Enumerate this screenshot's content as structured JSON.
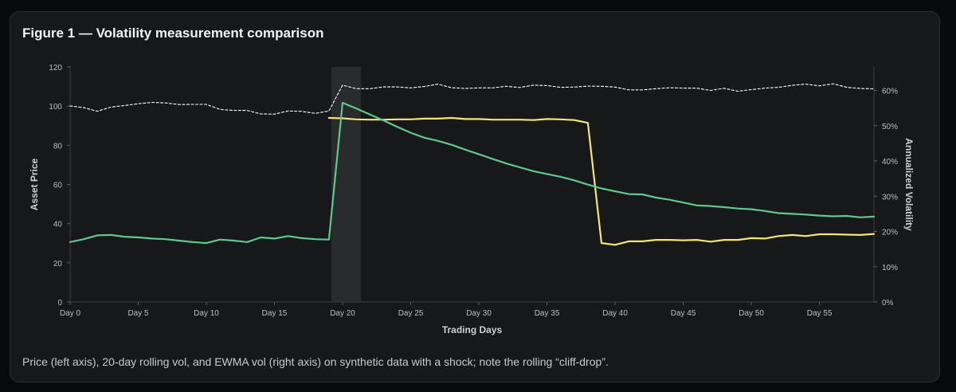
{
  "figure": {
    "title": "Figure 1 — Volatility measurement comparison",
    "caption": "Price (left axis), 20-day rolling vol, and EWMA vol (right axis) on synthetic data with a shock; note the rolling “cliff-drop”."
  },
  "colors": {
    "background": "#17181a",
    "price": "#ffffff",
    "rolling_vol": "#f5e47a",
    "ewma_vol": "#5ec98c",
    "shock_band": "#2a2b2d",
    "axis_text": "#bdbdbd"
  },
  "chart_data": {
    "type": "line",
    "xlabel": "Trading Days",
    "ylabel_left": "Asset Price",
    "ylabel_right": "Annualized Volatility",
    "xlim": [
      0,
      59
    ],
    "ylim_left": [
      0,
      120
    ],
    "ylim_right": [
      0,
      0.6667
    ],
    "x_ticks": [
      0,
      5,
      10,
      15,
      20,
      25,
      30,
      35,
      40,
      45,
      50,
      55
    ],
    "x_tick_labels": [
      "Day 0",
      "Day 5",
      "Day 10",
      "Day 15",
      "Day 20",
      "Day 25",
      "Day 30",
      "Day 35",
      "Day 40",
      "Day 45",
      "Day 50",
      "Day 55"
    ],
    "y_left_ticks": [
      0,
      20,
      40,
      60,
      80,
      100,
      120
    ],
    "y_left_tick_labels": [
      "0",
      "20",
      "40",
      "60",
      "80",
      "100",
      "120"
    ],
    "y_right_ticks": [
      0,
      0.1,
      0.2,
      0.3,
      0.4,
      0.5,
      0.6
    ],
    "y_right_tick_labels": [
      "0%",
      "10%",
      "20%",
      "30%",
      "40%",
      "50%",
      "60%"
    ],
    "shock_region": [
      19,
      21
    ],
    "grid": false,
    "legend": "none",
    "x": [
      0,
      1,
      2,
      3,
      4,
      5,
      6,
      7,
      8,
      9,
      10,
      11,
      12,
      13,
      14,
      15,
      16,
      17,
      18,
      19,
      20,
      21,
      22,
      23,
      24,
      25,
      26,
      27,
      28,
      29,
      30,
      31,
      32,
      33,
      34,
      35,
      36,
      37,
      38,
      39,
      40,
      41,
      42,
      43,
      44,
      45,
      46,
      47,
      48,
      49,
      50,
      51,
      52,
      53,
      54,
      55,
      56,
      57,
      58,
      59
    ],
    "series": [
      {
        "axis": "left",
        "style": "dashed",
        "values": [
          100.1,
          99.2,
          97.4,
          99.5,
          100.3,
          101.2,
          101.9,
          101.6,
          100.8,
          100.9,
          100.9,
          98.3,
          97.8,
          97.8,
          96.0,
          95.9,
          97.5,
          97.3,
          96.3,
          97.5,
          110.7,
          108.9,
          108.9,
          109.8,
          109.8,
          109.3,
          110.0,
          111.2,
          109.4,
          109.0,
          109.3,
          109.3,
          110.1,
          109.5,
          110.7,
          110.5,
          109.6,
          109.7,
          110.2,
          110.1,
          109.7,
          108.3,
          108.3,
          108.9,
          109.4,
          109.2,
          109.2,
          108.0,
          109.1,
          107.6,
          108.4,
          109.2,
          109.6,
          110.6,
          111.2,
          110.3,
          111.4,
          109.6,
          109.0,
          108.8
        ]
      },
      {
        "axis": "right",
        "style": "solid",
        "values": [
          null,
          null,
          null,
          null,
          null,
          null,
          null,
          null,
          null,
          null,
          null,
          null,
          null,
          null,
          null,
          null,
          null,
          null,
          null,
          0.522,
          0.521,
          0.518,
          0.517,
          0.517,
          0.518,
          0.518,
          0.52,
          0.52,
          0.522,
          0.519,
          0.519,
          0.517,
          0.517,
          0.517,
          0.516,
          0.519,
          0.518,
          0.516,
          0.508,
          0.167,
          0.162,
          0.172,
          0.172,
          0.176,
          0.176,
          0.175,
          0.176,
          0.171,
          0.176,
          0.176,
          0.181,
          0.18,
          0.187,
          0.19,
          0.187,
          0.192,
          0.192,
          0.191,
          0.19,
          0.193
        ]
      },
      {
        "axis": "right",
        "style": "solid",
        "values": [
          0.17,
          0.178,
          0.189,
          0.19,
          0.185,
          0.183,
          0.18,
          0.178,
          0.174,
          0.17,
          0.167,
          0.177,
          0.174,
          0.17,
          0.183,
          0.18,
          0.187,
          0.181,
          0.178,
          0.177,
          0.565,
          0.549,
          0.532,
          0.515,
          0.497,
          0.48,
          0.466,
          0.457,
          0.446,
          0.432,
          0.419,
          0.406,
          0.393,
          0.382,
          0.371,
          0.363,
          0.355,
          0.345,
          0.333,
          0.322,
          0.314,
          0.306,
          0.305,
          0.296,
          0.29,
          0.282,
          0.274,
          0.272,
          0.269,
          0.265,
          0.263,
          0.258,
          0.252,
          0.25,
          0.248,
          0.245,
          0.243,
          0.244,
          0.24,
          0.242
        ]
      }
    ]
  }
}
